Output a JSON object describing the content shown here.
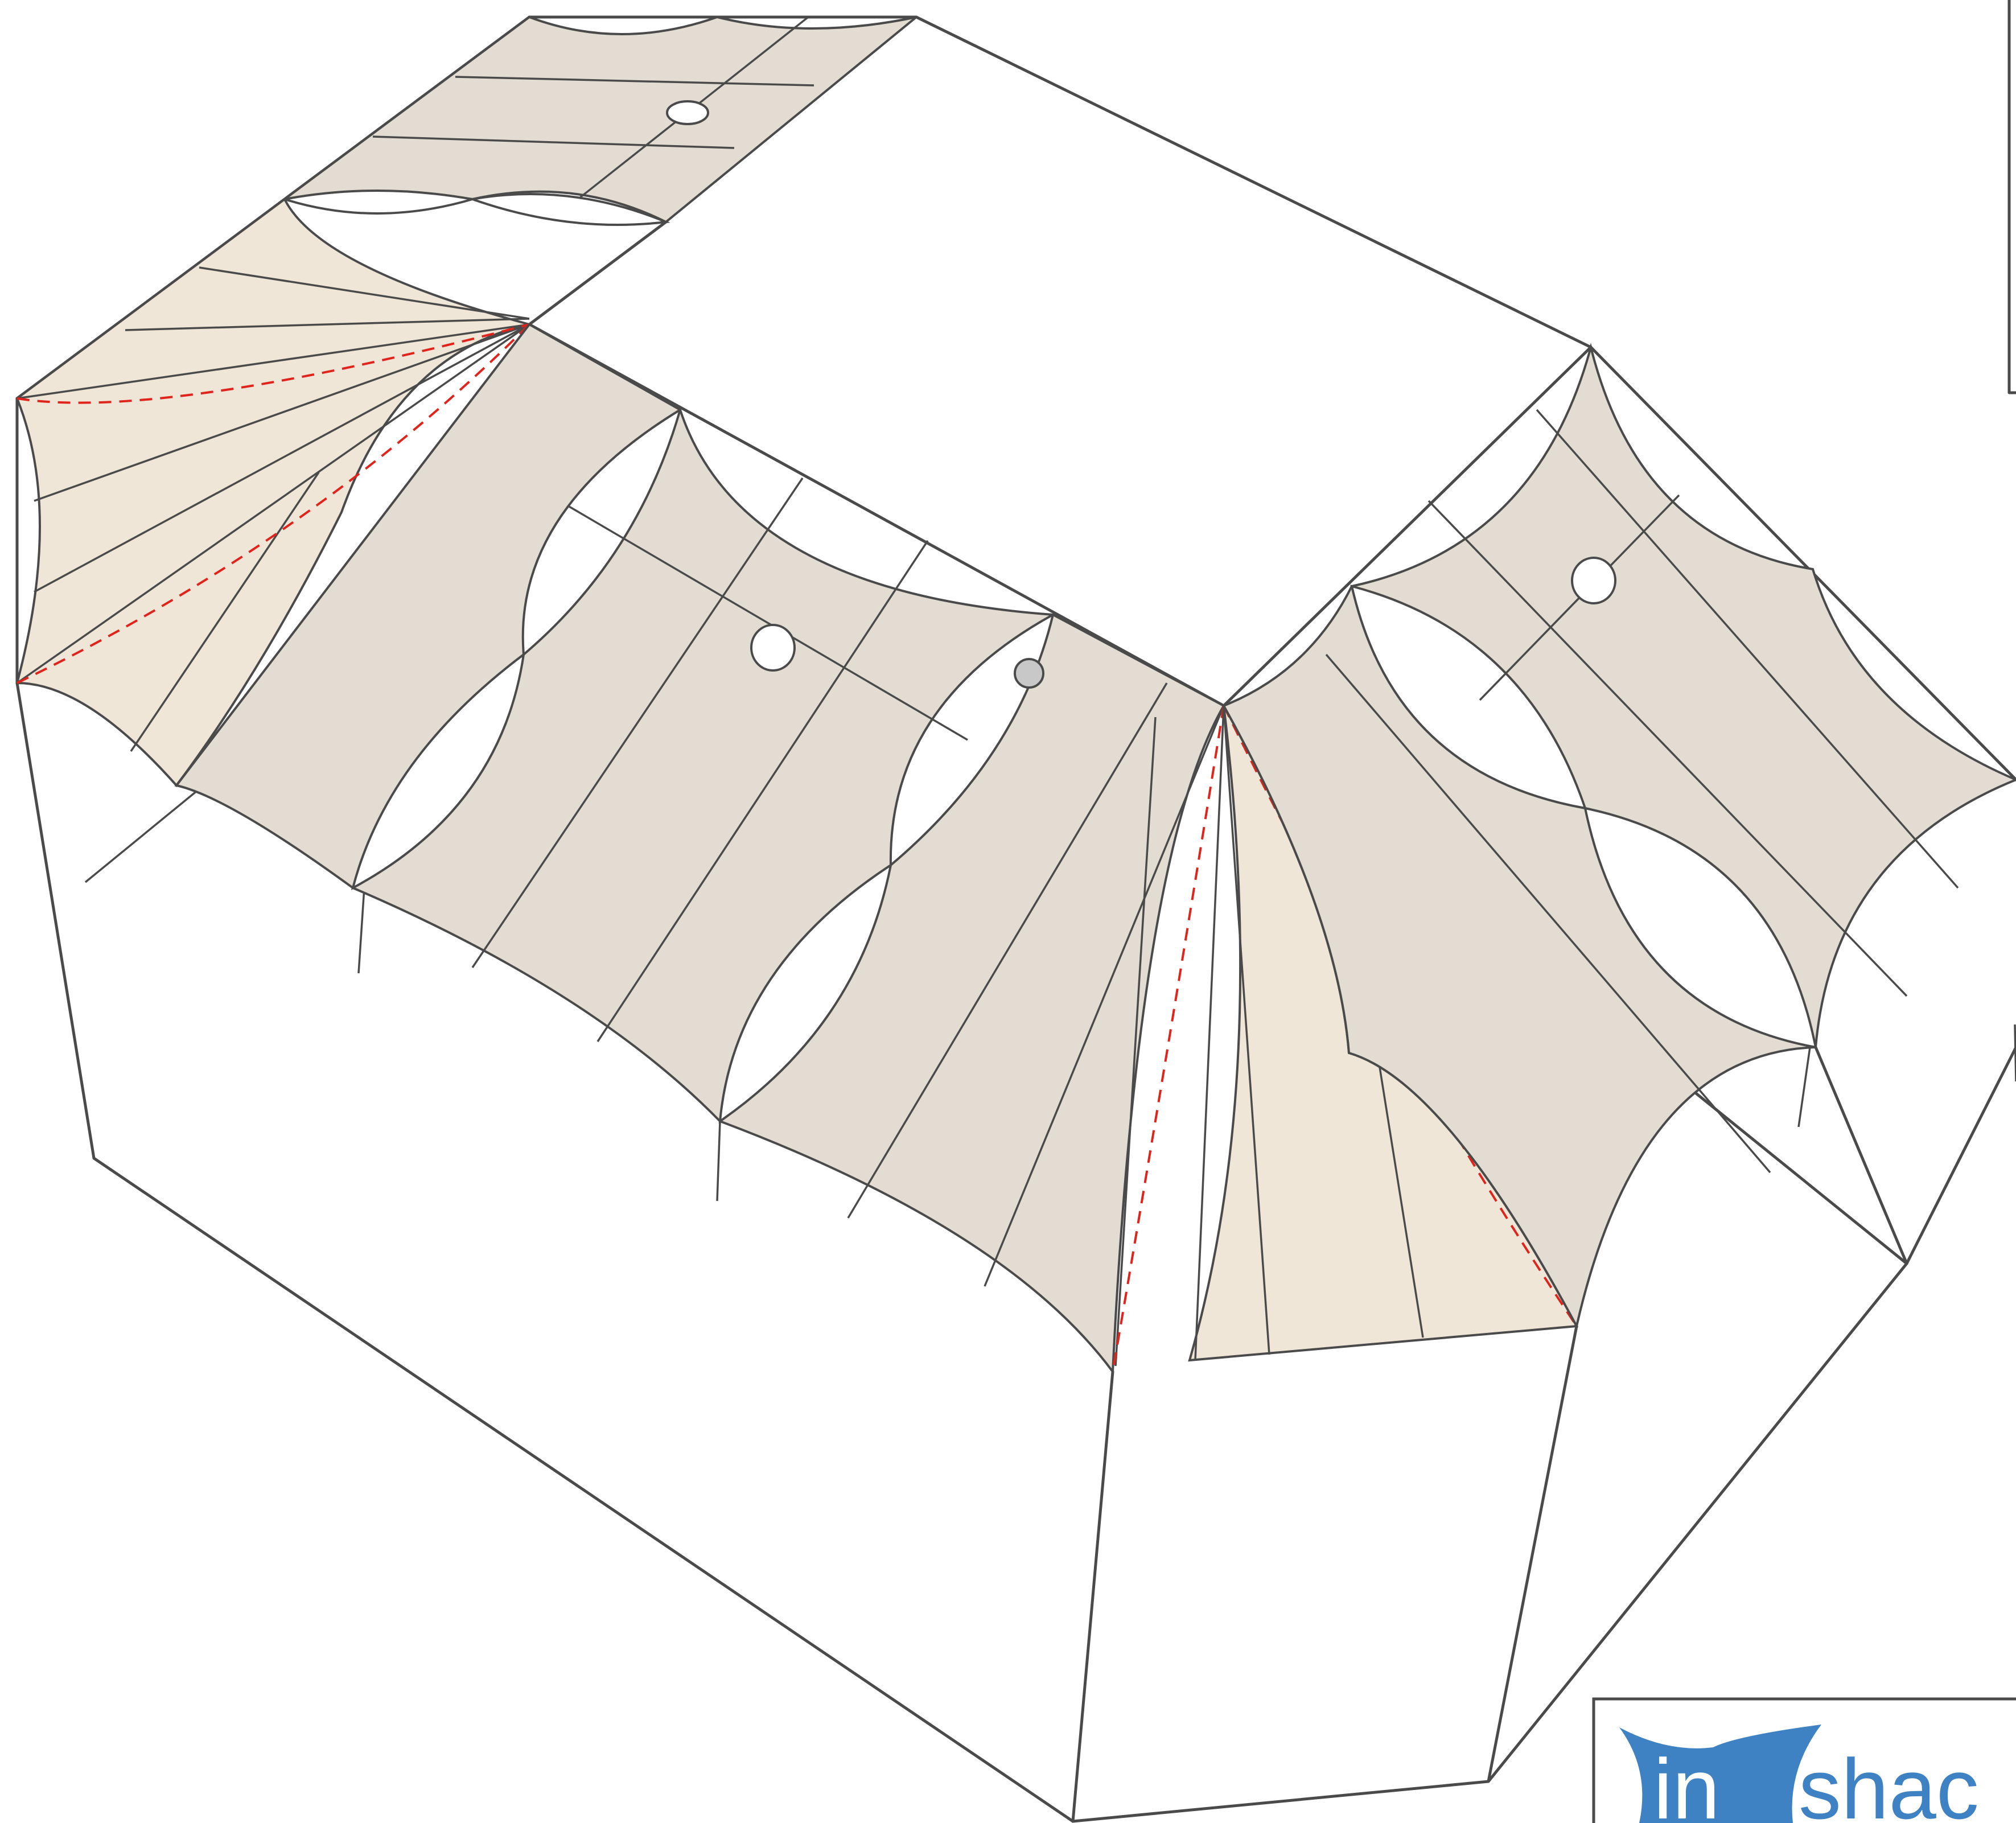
{
  "drawing": {
    "colors": {
      "fabric": "#e2dcd2",
      "fabric_highlight": "#efe6d8",
      "wireframe": "#4a4a4a",
      "cable_dashed": "#e0241b",
      "background": "#ffffff",
      "logo_blue": "#3e82c4"
    }
  },
  "logo": {
    "part1": "in",
    "part2": "shac"
  }
}
